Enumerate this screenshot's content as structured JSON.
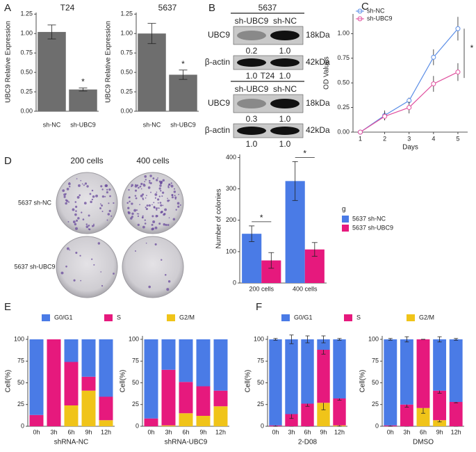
{
  "letters": [
    "A",
    "B",
    "C",
    "D",
    "E",
    "F"
  ],
  "blots": [
    {
      "title": "5637",
      "lanes": [
        "sh-UBC9",
        "sh-NC"
      ],
      "rows": [
        {
          "label": "UBC9",
          "size": "18kDa",
          "quant": [
            "0.2",
            "1.0"
          ]
        },
        {
          "label": "β-actin",
          "size": "42kDa",
          "quant": [
            "1.0",
            "1.0"
          ]
        }
      ]
    },
    {
      "title": "T24",
      "lanes": [
        "sh-UBC9",
        "sh-NC"
      ],
      "rows": [
        {
          "label": "UBC9",
          "size": "18kDa",
          "quant": [
            "0.3",
            "1.0"
          ]
        },
        {
          "label": "β-actin",
          "size": "42kDa",
          "quant": [
            "1.0",
            "1.0"
          ]
        }
      ]
    }
  ],
  "colony": {
    "columns": [
      "200 cells",
      "400 cells"
    ],
    "rows": [
      "5637 sh-NC",
      "5637 sh-UBC9"
    ]
  },
  "chart_data": [
    {
      "type": "bar",
      "title": "T24",
      "ylabel": "UBC9 Relative Expression",
      "categories": [
        "sh-NC",
        "sh-UBC9"
      ],
      "values": [
        1.02,
        0.28
      ],
      "errors": [
        0.09,
        0.02
      ],
      "color": "#6e6e6e",
      "annotations": [
        "*"
      ],
      "ylim": [
        0,
        1.27
      ],
      "yticks": [
        {
          "value": 0,
          "label": "0.00"
        },
        {
          "value": 0.25,
          "label": "0.25"
        },
        {
          "value": 0.5,
          "label": "0.50"
        },
        {
          "value": 0.75,
          "label": "0.75"
        },
        {
          "value": 1,
          "label": "1.00"
        },
        {
          "value": 1.25,
          "label": "1.25"
        }
      ]
    },
    {
      "type": "bar",
      "title": "5637",
      "ylabel": "UBC9 Relative Expression",
      "categories": [
        "sh-NC",
        "sh-UBC9"
      ],
      "values": [
        1.0,
        0.47
      ],
      "errors": [
        0.13,
        0.06
      ],
      "color": "#6e6e6e",
      "annotations": [
        "*"
      ],
      "ylim": [
        0,
        1.27
      ],
      "yticks": [
        {
          "value": 0,
          "label": "0.00"
        },
        {
          "value": 0.25,
          "label": "0.25"
        },
        {
          "value": 0.5,
          "label": "0.50"
        },
        {
          "value": 0.75,
          "label": "0.75"
        },
        {
          "value": 1,
          "label": "1.00"
        },
        {
          "value": 1.25,
          "label": "1.25"
        }
      ]
    },
    {
      "type": "line",
      "xlabel": "Days",
      "ylabel": "OD Values",
      "x": [
        1,
        2,
        3,
        4,
        5
      ],
      "annotations": [
        "*"
      ],
      "series": [
        {
          "name": "sh-NC",
          "color": "#5a8de6",
          "values": [
            0.0,
            0.17,
            0.32,
            0.76,
            1.05
          ],
          "errors": [
            0.01,
            0.05,
            0.03,
            0.08,
            0.12
          ]
        },
        {
          "name": "sh-UBC9",
          "color": "#e0509e",
          "values": [
            0.0,
            0.16,
            0.25,
            0.49,
            0.61
          ],
          "errors": [
            0.01,
            0.04,
            0.06,
            0.08,
            0.09
          ]
        }
      ],
      "xlim": [
        0.7,
        5.4
      ],
      "xticks": [
        1,
        2,
        3,
        4,
        5
      ],
      "ylim": [
        0,
        1.2
      ],
      "yticks": [
        {
          "value": 0,
          "label": "0.00"
        },
        {
          "value": 0.25,
          "label": "0.25"
        },
        {
          "value": 0.5,
          "label": "0.50"
        },
        {
          "value": 0.75,
          "label": "0.75"
        },
        {
          "value": 1,
          "label": "1.00"
        }
      ]
    },
    {
      "type": "grouped_bar",
      "ylabel": "Number of colonies",
      "legend_title": "g",
      "categories": [
        "200 cells",
        "400 cells"
      ],
      "annotations": [
        "*",
        "*"
      ],
      "series": [
        {
          "name": "5637 sh-NC",
          "color": "#4a7be6",
          "values": [
            157,
            325
          ],
          "errors": [
            25,
            62
          ]
        },
        {
          "name": "5637 sh-UBC9",
          "color": "#e6197d",
          "values": [
            72,
            107
          ],
          "errors": [
            25,
            22
          ]
        }
      ],
      "ylim": [
        0,
        410
      ],
      "yticks": [
        0,
        100,
        200,
        300,
        400
      ]
    },
    {
      "type": "stacked_bar",
      "ylabel": "Cell(%)",
      "ylim": [
        0,
        104
      ],
      "yticks": [
        0,
        25,
        50,
        75,
        100
      ],
      "series": [
        {
          "name": "G0/G1",
          "color": "#4a7be6"
        },
        {
          "name": "S",
          "color": "#e6197d"
        },
        {
          "name": "G2/M",
          "color": "#f0c419"
        }
      ],
      "facets": [
        {
          "xlabel": "shRNA-NC",
          "categories": [
            "0h",
            "3h",
            "6h",
            "9h",
            "12h"
          ],
          "values": [
            [
              87,
              0,
              26,
              43,
              66
            ],
            [
              13,
              100,
              50,
              16,
              27
            ],
            [
              0,
              0,
              24,
              41,
              7
            ]
          ]
        },
        {
          "xlabel": "shRNA-UBC9",
          "categories": [
            "0h",
            "3h",
            "6h",
            "9h",
            "12h"
          ],
          "values": [
            [
              91,
              35,
              49,
              54,
              59
            ],
            [
              9,
              64,
              36,
              34,
              18
            ],
            [
              0,
              1,
              15,
              12,
              23
            ]
          ]
        }
      ]
    },
    {
      "type": "stacked_bar",
      "ylabel": "Cell(%)",
      "ylim": [
        0,
        104
      ],
      "yticks": [
        0,
        25,
        50,
        75,
        100
      ],
      "series": [
        {
          "name": "G0/G1",
          "color": "#4a7be6"
        },
        {
          "name": "S",
          "color": "#e6197d"
        },
        {
          "name": "G2/M",
          "color": "#f0c419"
        }
      ],
      "facets": [
        {
          "xlabel": "2-D08",
          "categories": [
            "0h",
            "3h",
            "6h",
            "9h",
            "12h"
          ],
          "values": [
            [
              99,
              86,
              74,
              12,
              68
            ],
            [
              1,
              14,
              26,
              61,
              31
            ],
            [
              0,
              0,
              0,
              27,
              1
            ]
          ],
          "errors": [
            [
              1,
              5,
              4,
              4,
              1
            ],
            [
              1,
              5,
              3,
              5,
              2
            ],
            [
              0,
              0,
              0,
              8,
              1
            ]
          ]
        },
        {
          "xlabel": "DMSO",
          "categories": [
            "0h",
            "3h",
            "6h",
            "9h",
            "12h"
          ],
          "values": [
            [
              99,
              75,
              0,
              59,
              72
            ],
            [
              1,
              25,
              79,
              34,
              28
            ],
            [
              0,
              0,
              21,
              7,
              0
            ]
          ],
          "errors": [
            [
              1,
              3,
              0,
              3,
              1
            ],
            [
              1,
              3,
              0,
              3,
              1
            ],
            [
              0,
              0,
              6,
              2,
              0
            ]
          ]
        }
      ]
    }
  ]
}
